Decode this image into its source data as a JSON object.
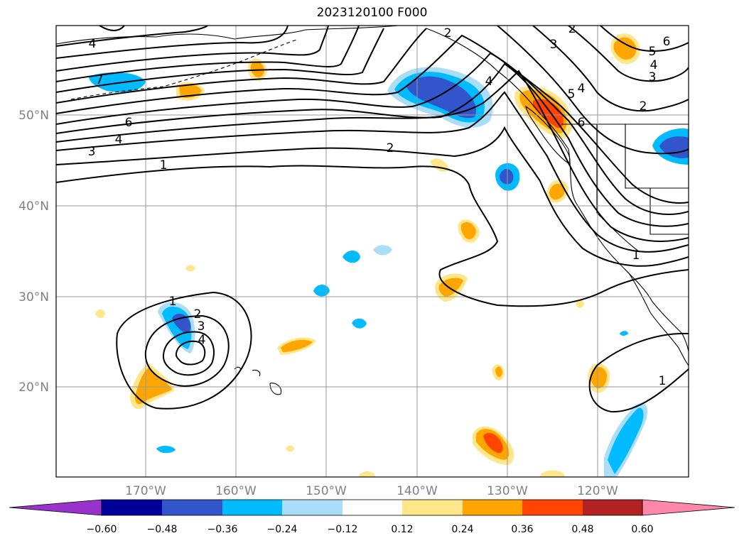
{
  "title": "2023120100 F000",
  "map": {
    "lat_labels": [
      "50°N",
      "40°N",
      "30°N",
      "20°N"
    ],
    "lon_labels": [
      "170°W",
      "160°W",
      "150°W",
      "140°W",
      "130°W",
      "120°W"
    ],
    "contour_labels": [
      "4",
      "7",
      "6",
      "4",
      "3",
      "1",
      "2",
      "1",
      "2",
      "3",
      "4",
      "1",
      "2",
      "3",
      "5",
      "4",
      "6",
      "5",
      "4",
      "3",
      "2",
      "6",
      "2",
      "4",
      "1"
    ]
  },
  "colorbar": {
    "tick_labels": [
      "−0.60",
      "−0.48",
      "−0.36",
      "−0.24",
      "−0.12",
      "0.12",
      "0.24",
      "0.36",
      "0.48",
      "0.60"
    ],
    "colors": [
      "#9933cc",
      "#000099",
      "#3355cc",
      "#00bbff",
      "#aaddf7",
      "#ffffff",
      "#ffe68a",
      "#ffa500",
      "#ff4500",
      "#b22222",
      "#ff88aa"
    ]
  }
}
